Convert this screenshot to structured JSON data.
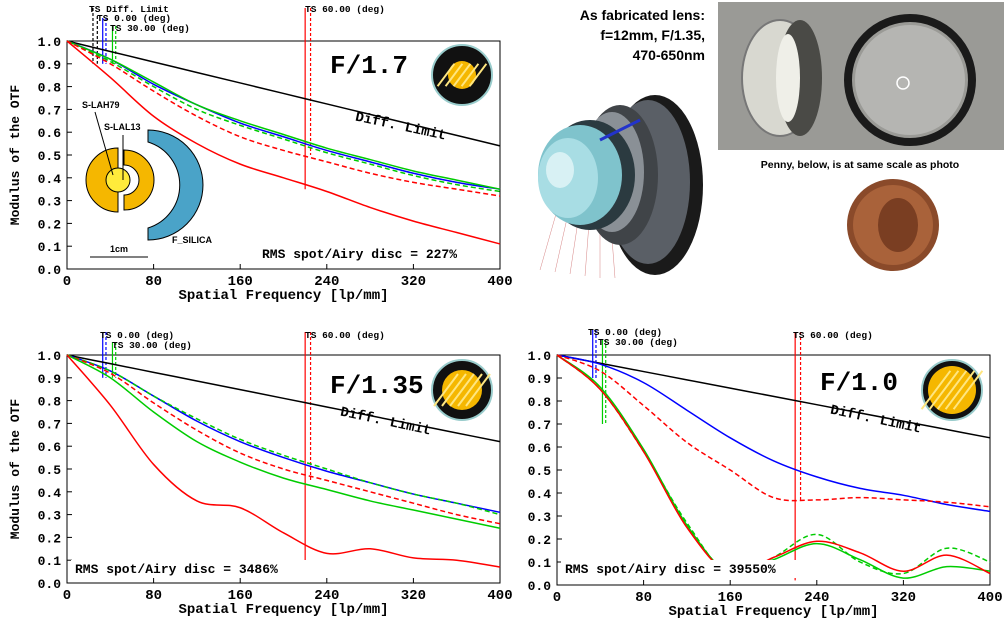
{
  "chart_data": [
    {
      "type": "line",
      "title": "F/1.7",
      "xlabel": "Spatial Frequency [lp/mm]",
      "ylabel": "Modulus of the OTF",
      "x": [
        0,
        40,
        80,
        120,
        160,
        200,
        240,
        280,
        320,
        360,
        400
      ],
      "xlim": [
        0,
        400
      ],
      "xticks": [
        0,
        80,
        160,
        240,
        320,
        400
      ],
      "ylim": [
        0,
        1
      ],
      "yticks": [
        {
          "value": 0,
          "label": "0.0"
        },
        0.1,
        0.2,
        0.3,
        0.4,
        0.5,
        0.6,
        0.7,
        0.8,
        0.9,
        {
          "value": 1,
          "label": "1.0"
        }
      ],
      "series": [
        {
          "color": "#000000",
          "dash": false,
          "values": [
            1,
            0.954,
            0.908,
            0.862,
            0.816,
            0.77,
            0.724,
            0.678,
            0.632,
            0.586,
            0.54
          ]
        },
        {
          "color": "#0000ff",
          "dash": false,
          "values": [
            1,
            0.92,
            0.81,
            0.72,
            0.64,
            0.58,
            0.52,
            0.47,
            0.42,
            0.38,
            0.35
          ]
        },
        {
          "color": "#00cc00",
          "dash": false,
          "values": [
            1,
            0.92,
            0.82,
            0.72,
            0.65,
            0.59,
            0.53,
            0.48,
            0.43,
            0.39,
            0.35
          ]
        },
        {
          "color": "#00cc00",
          "dash": true,
          "values": [
            1,
            0.91,
            0.8,
            0.7,
            0.63,
            0.57,
            0.51,
            0.46,
            0.41,
            0.37,
            0.34
          ]
        },
        {
          "color": "#ff0000",
          "dash": true,
          "values": [
            1,
            0.9,
            0.78,
            0.67,
            0.58,
            0.52,
            0.47,
            0.42,
            0.38,
            0.35,
            0.32
          ]
        },
        {
          "color": "#ff0000",
          "dash": false,
          "values": [
            1,
            0.84,
            0.67,
            0.55,
            0.46,
            0.4,
            0.34,
            0.27,
            0.21,
            0.16,
            0.11
          ]
        }
      ],
      "field_labels": [
        "TS Diff. Limit",
        "TS 0.00 (deg)",
        "TS 30.00 (deg)",
        "TS 60.00 (deg)"
      ],
      "diff_label": "Diff. Limit",
      "rms_label": "RMS spot/Airy disc = 227%",
      "lens_labels": [
        "S-LAH79",
        "S-LAL13",
        "F_SILICA",
        "1cm"
      ]
    },
    {
      "type": "line",
      "title": "F/1.35",
      "xlabel": "Spatial Frequency [lp/mm]",
      "ylabel": "Modulus of the OTF",
      "x": [
        0,
        40,
        80,
        120,
        160,
        200,
        240,
        280,
        320,
        360,
        400
      ],
      "xlim": [
        0,
        400
      ],
      "xticks": [
        0,
        80,
        160,
        240,
        320,
        400
      ],
      "ylim": [
        0,
        1
      ],
      "yticks": [
        {
          "value": 0,
          "label": "0.0"
        },
        0.1,
        0.2,
        0.3,
        0.4,
        0.5,
        0.6,
        0.7,
        0.8,
        0.9,
        {
          "value": 1,
          "label": "1.0"
        }
      ],
      "series": [
        {
          "color": "#000000",
          "dash": false,
          "values": [
            1,
            0.962,
            0.924,
            0.886,
            0.848,
            0.81,
            0.772,
            0.734,
            0.696,
            0.658,
            0.62
          ]
        },
        {
          "color": "#0000ff",
          "dash": false,
          "values": [
            1,
            0.93,
            0.82,
            0.71,
            0.62,
            0.55,
            0.49,
            0.44,
            0.39,
            0.35,
            0.31
          ]
        },
        {
          "color": "#00cc00",
          "dash": true,
          "values": [
            1,
            0.93,
            0.82,
            0.72,
            0.63,
            0.56,
            0.5,
            0.44,
            0.39,
            0.35,
            0.3
          ]
        },
        {
          "color": "#ff0000",
          "dash": true,
          "values": [
            1,
            0.92,
            0.79,
            0.67,
            0.57,
            0.5,
            0.45,
            0.4,
            0.35,
            0.3,
            0.26
          ]
        },
        {
          "color": "#00cc00",
          "dash": false,
          "values": [
            1,
            0.9,
            0.75,
            0.62,
            0.53,
            0.46,
            0.41,
            0.36,
            0.32,
            0.28,
            0.24
          ]
        },
        {
          "color": "#ff0000",
          "dash": false,
          "values": [
            1,
            0.78,
            0.52,
            0.36,
            0.33,
            0.22,
            0.13,
            0.15,
            0.11,
            0.1,
            0.07
          ]
        }
      ],
      "field_labels": [
        "TS 0.00 (deg)",
        "TS 30.00 (deg)",
        "TS 60.00 (deg)"
      ],
      "diff_label": "Diff. Limit",
      "rms_label": "RMS spot/Airy disc = 3486%"
    },
    {
      "type": "line",
      "title": "F/1.0",
      "xlabel": "Spatial Frequency [lp/mm]",
      "x": [
        0,
        40,
        80,
        120,
        160,
        200,
        240,
        280,
        320,
        360,
        400
      ],
      "xlim": [
        0,
        400
      ],
      "xticks": [
        0,
        80,
        160,
        240,
        320,
        400
      ],
      "ylim": [
        0,
        1
      ],
      "yticks": [
        {
          "value": 0,
          "label": "0.0"
        },
        0.1,
        0.2,
        0.3,
        0.4,
        0.5,
        0.6,
        0.7,
        0.8,
        0.9,
        {
          "value": 1,
          "label": "1.0"
        }
      ],
      "series": [
        {
          "color": "#000000",
          "dash": false,
          "values": [
            1,
            0.964,
            0.928,
            0.892,
            0.856,
            0.82,
            0.784,
            0.748,
            0.712,
            0.676,
            0.64
          ]
        },
        {
          "color": "#0000ff",
          "dash": false,
          "values": [
            1,
            0.96,
            0.88,
            0.76,
            0.64,
            0.54,
            0.47,
            0.42,
            0.39,
            0.35,
            0.32
          ]
        },
        {
          "color": "#ff0000",
          "dash": true,
          "values": [
            1,
            0.93,
            0.78,
            0.62,
            0.5,
            0.38,
            0.37,
            0.38,
            0.37,
            0.36,
            0.34
          ]
        },
        {
          "color": "#00cc00",
          "dash": true,
          "values": [
            1,
            0.85,
            0.58,
            0.27,
            0.04,
            0.12,
            0.22,
            0.1,
            0.05,
            0.16,
            0.1
          ]
        },
        {
          "color": "#00cc00",
          "dash": false,
          "values": [
            1,
            0.86,
            0.59,
            0.26,
            0.05,
            0.11,
            0.18,
            0.11,
            0.03,
            0.08,
            0.06
          ]
        },
        {
          "color": "#ff0000",
          "dash": false,
          "values": [
            1,
            0.85,
            0.58,
            0.25,
            0.05,
            0.12,
            0.19,
            0.14,
            0.06,
            0.13,
            0.05
          ]
        }
      ],
      "field_labels": [
        "TS 0.00 (deg)",
        "TS 30.00 (deg)",
        "TS 60.00 (deg)"
      ],
      "diff_label": "Diff. Limit",
      "rms_label": "RMS spot/Airy disc = 39550%"
    }
  ],
  "figure": {
    "caption_lines": [
      "As fabricated lens:",
      "f=12mm, F/1.35,",
      "470-650nm"
    ],
    "photo_caption": "Penny, below, is at same scale as photo"
  }
}
